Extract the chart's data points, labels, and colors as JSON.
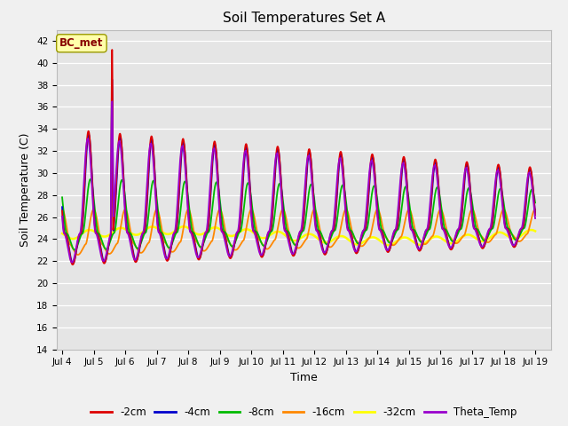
{
  "title": "Soil Temperatures Set A",
  "xlabel": "Time",
  "ylabel": "Soil Temperature (C)",
  "ylim": [
    14,
    43
  ],
  "xlim_start": 3.83,
  "xlim_end": 19.5,
  "bg_color": "#e5e5e5",
  "fig_color": "#f0f0f0",
  "annotation_text": "BC_met",
  "annotation_bg": "#ffffaa",
  "annotation_border": "#999900",
  "annotation_text_color": "#880000",
  "colors": {
    "-2cm": "#dd0000",
    "-4cm": "#0000cc",
    "-8cm": "#00bb00",
    "-16cm": "#ff8800",
    "-32cm": "#ffff00",
    "Theta_Temp": "#9900cc"
  },
  "linewidths": {
    "-2cm": 1.3,
    "-4cm": 1.3,
    "-8cm": 1.3,
    "-16cm": 1.3,
    "-32cm": 1.8,
    "Theta_Temp": 1.3
  },
  "xtick_labels": [
    "Jul 4",
    "Jul 5",
    "Jul 6",
    "Jul 7",
    "Jul 8",
    "Jul 9",
    "Jul 10",
    "Jul 11",
    "Jul 12",
    "Jul 13",
    "Jul 14",
    "Jul 15",
    "Jul 16",
    "Jul 17",
    "Jul 18",
    "Jul 19"
  ],
  "xtick_positions": [
    4,
    5,
    6,
    7,
    8,
    9,
    10,
    11,
    12,
    13,
    14,
    15,
    16,
    17,
    18,
    19
  ],
  "ytick_positions": [
    14,
    16,
    18,
    20,
    22,
    24,
    26,
    28,
    30,
    32,
    34,
    36,
    38,
    40,
    42
  ]
}
